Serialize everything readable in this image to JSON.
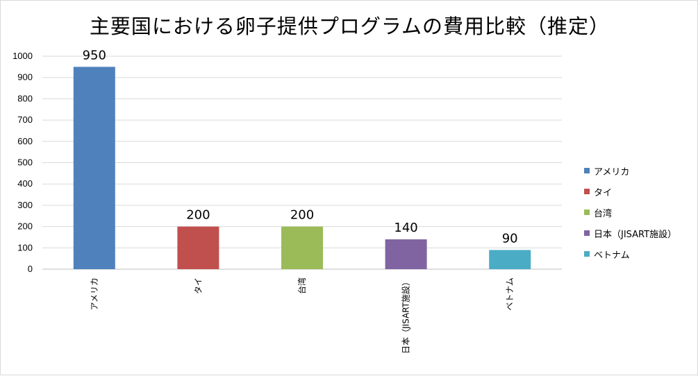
{
  "chart_data": {
    "type": "bar",
    "title": "主要国における卵子提供プログラムの費用比較（推定）",
    "categories": [
      "アメリカ",
      "タイ",
      "台湾",
      "日本（JISART施設）",
      "ベトナム"
    ],
    "values": [
      950,
      200,
      200,
      140,
      90
    ],
    "data_labels": [
      "950",
      "200",
      "200",
      "140",
      "90"
    ],
    "colors": [
      "#4f81bd",
      "#c0504d",
      "#9bbb59",
      "#8064a2",
      "#4bacc6"
    ],
    "ylim": [
      0,
      1000
    ],
    "yticks": [
      0,
      100,
      200,
      300,
      400,
      500,
      600,
      700,
      800,
      900,
      1000
    ],
    "grid": true,
    "legend_position": "right"
  }
}
